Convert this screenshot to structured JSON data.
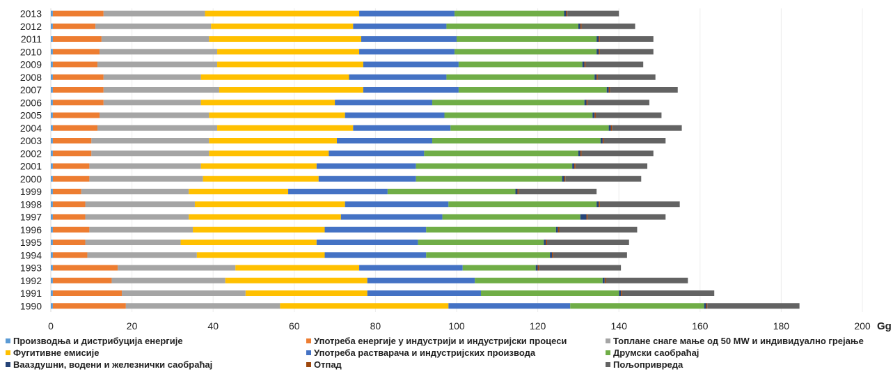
{
  "chart_data": {
    "type": "bar",
    "orientation": "horizontal",
    "stacked": true,
    "title": "",
    "xlabel": "",
    "ylabel": "",
    "x_unit": "Gg",
    "xlim": [
      0,
      200
    ],
    "x_ticks": [
      0,
      20,
      40,
      60,
      80,
      100,
      120,
      140,
      160,
      180,
      200
    ],
    "grid": "vertical",
    "legend_position": "bottom",
    "categories": [
      "2013",
      "2012",
      "2011",
      "2010",
      "2009",
      "2008",
      "2007",
      "2006",
      "2005",
      "2004",
      "2003",
      "2002",
      "2001",
      "2000",
      "1999",
      "1998",
      "1997",
      "1996",
      "1995",
      "1994",
      "1993",
      "1992",
      "1991",
      "1990"
    ],
    "series": [
      {
        "name": "Производња и дистрибуција енергије",
        "color": "#5B9BD5",
        "values": [
          0.5,
          0.5,
          0.5,
          0.5,
          0.5,
          0.5,
          0.5,
          0.5,
          0.5,
          0.5,
          0.5,
          0.5,
          0.5,
          0.5,
          0.5,
          0.5,
          0.5,
          0.5,
          0.5,
          0.5,
          0.5,
          0.5,
          0.5,
          0.5
        ]
      },
      {
        "name": "Употреба енергије у индустрији и индустријски процеси",
        "color": "#ED7D31",
        "values": [
          12.5,
          10.5,
          12.0,
          11.5,
          11.0,
          12.5,
          12.5,
          12.5,
          11.5,
          11.0,
          9.5,
          9.5,
          9.0,
          9.0,
          7.0,
          8.0,
          8.0,
          9.0,
          8.0,
          8.5,
          16.0,
          14.5,
          17.0,
          18.0
        ]
      },
      {
        "name": "Топлане снаге мање од 50 MW и индивидуално грејање",
        "color": "#A5A5A5",
        "values": [
          25.0,
          28.5,
          26.5,
          29.0,
          29.5,
          24.0,
          28.5,
          24.0,
          27.0,
          29.5,
          29.0,
          29.0,
          27.5,
          28.0,
          26.5,
          27.0,
          25.5,
          25.5,
          23.5,
          27.0,
          29.0,
          28.0,
          30.5,
          38.0
        ]
      },
      {
        "name": "Фугитивне емисије",
        "color": "#FFC000",
        "values": [
          38.0,
          35.0,
          37.5,
          35.0,
          36.0,
          36.5,
          35.5,
          33.0,
          33.5,
          33.5,
          31.5,
          29.5,
          28.5,
          28.5,
          24.5,
          37.0,
          37.5,
          32.5,
          33.5,
          31.5,
          30.5,
          35.0,
          30.0,
          41.5
        ]
      },
      {
        "name": "Употреба растварача и индустријских производа",
        "color": "#4472C4",
        "values": [
          23.5,
          23.0,
          23.5,
          23.5,
          23.5,
          24.0,
          23.5,
          24.0,
          24.5,
          24.0,
          23.5,
          23.5,
          24.5,
          24.0,
          24.5,
          25.5,
          25.0,
          25.0,
          25.0,
          25.0,
          25.5,
          26.5,
          28.0,
          30.0
        ]
      },
      {
        "name": "Друмски саобраћај",
        "color": "#70AD47",
        "values": [
          27.0,
          32.5,
          34.5,
          35.0,
          30.5,
          36.5,
          36.5,
          37.5,
          36.5,
          39.0,
          41.5,
          38.0,
          38.5,
          36.0,
          31.5,
          36.5,
          34.0,
          32.0,
          31.0,
          30.5,
          18.0,
          31.5,
          34.0,
          33.0
        ]
      },
      {
        "name": "Вааздушни, водени и железнички саобраћај",
        "color": "#264478",
        "values": [
          0.5,
          0.5,
          0.5,
          0.5,
          0.5,
          0.5,
          0.5,
          0.5,
          0.5,
          0.5,
          0.5,
          0.5,
          0.5,
          0.5,
          0.5,
          0.5,
          1.5,
          0.5,
          0.5,
          0.5,
          0.5,
          0.5,
          0.5,
          0.5
        ]
      },
      {
        "name": "Отпад",
        "color": "#9E480E",
        "values": [
          0.3,
          0.3,
          0.3,
          0.3,
          0.3,
          0.3,
          0.3,
          0.3,
          0.3,
          0.3,
          0.3,
          0.3,
          0.3,
          0.3,
          0.3,
          0.3,
          0.3,
          0.3,
          0.3,
          0.3,
          0.3,
          0.3,
          0.3,
          0.3
        ]
      },
      {
        "name": "Пољопривреда",
        "color": "#636363",
        "values": [
          12.7,
          13.2,
          13.2,
          13.2,
          14.2,
          14.2,
          16.7,
          15.2,
          16.2,
          17.2,
          15.2,
          17.7,
          17.7,
          18.7,
          19.2,
          19.7,
          19.2,
          19.2,
          20.2,
          18.2,
          20.2,
          20.2,
          22.7,
          22.7
        ]
      }
    ]
  }
}
